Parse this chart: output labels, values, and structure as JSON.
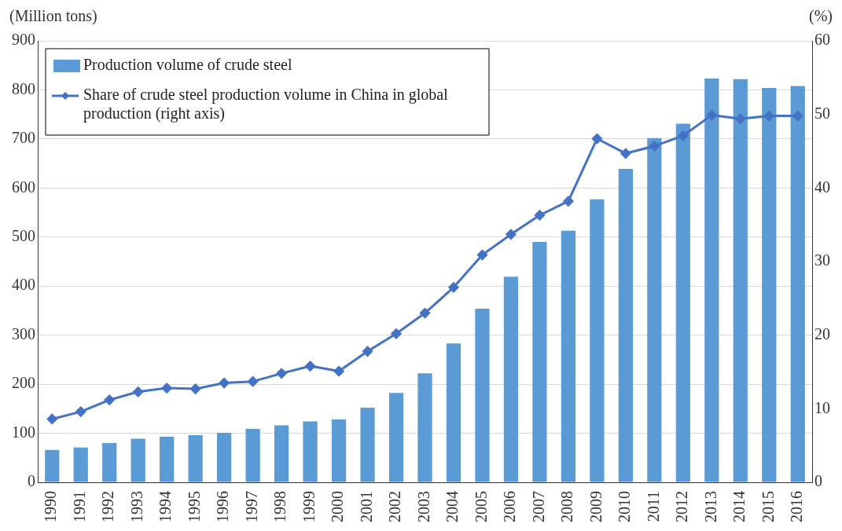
{
  "chart_data": {
    "type": "bar",
    "ylabel": "(Million tons)",
    "y2label": "(%)",
    "categories": [
      "1990",
      "1991",
      "1992",
      "1993",
      "1994",
      "1995",
      "1996",
      "1997",
      "1998",
      "1999",
      "2000",
      "2001",
      "2002",
      "2003",
      "2004",
      "2005",
      "2006",
      "2007",
      "2008",
      "2009",
      "2010",
      "2011",
      "2012",
      "2013",
      "2014",
      "2015",
      "2016"
    ],
    "series": [
      {
        "name": "Production volume of crude steel",
        "color": "#5b9bd5",
        "values": [
          66,
          71,
          80,
          89,
          93,
          96,
          101,
          109,
          116,
          124,
          128,
          152,
          182,
          222,
          283,
          354,
          419,
          490,
          513,
          577,
          639,
          702,
          731,
          823,
          822,
          804,
          808
        ]
      },
      {
        "name": "Share of crude steel production volume in China in global production (right axis)",
        "type": "line",
        "axis": "y2",
        "color": "#4472c4",
        "values": [
          8.6,
          9.6,
          11.2,
          12.3,
          12.8,
          12.7,
          13.5,
          13.7,
          14.8,
          15.8,
          15.1,
          17.8,
          20.2,
          23.0,
          26.5,
          30.9,
          33.7,
          36.3,
          38.2,
          46.7,
          44.7,
          45.7,
          47.1,
          49.9,
          49.4,
          49.8,
          49.8
        ]
      }
    ],
    "ylim": [
      0,
      900
    ],
    "yticks": [
      0,
      100,
      200,
      300,
      400,
      500,
      600,
      700,
      800,
      900
    ],
    "y2lim": [
      0,
      60
    ],
    "y2ticks": [
      0,
      10,
      20,
      30,
      40,
      50,
      60
    ],
    "grid": "y",
    "legend": "top left",
    "marker": "diamond",
    "line_style": "solid"
  }
}
